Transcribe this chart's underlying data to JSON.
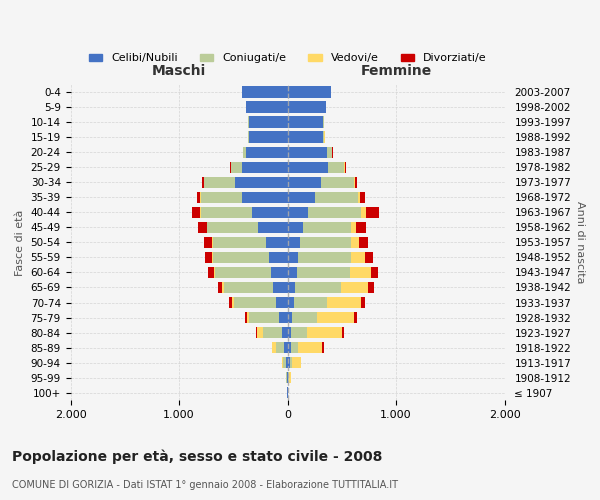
{
  "age_groups": [
    "100+",
    "95-99",
    "90-94",
    "85-89",
    "80-84",
    "75-79",
    "70-74",
    "65-69",
    "60-64",
    "55-59",
    "50-54",
    "45-49",
    "40-44",
    "35-39",
    "30-34",
    "25-29",
    "20-24",
    "15-19",
    "10-14",
    "5-9",
    "0-4"
  ],
  "birth_years": [
    "≤ 1907",
    "1908-1912",
    "1913-1917",
    "1918-1922",
    "1923-1927",
    "1928-1932",
    "1933-1937",
    "1938-1942",
    "1943-1947",
    "1948-1952",
    "1953-1957",
    "1958-1962",
    "1963-1967",
    "1968-1972",
    "1973-1977",
    "1978-1982",
    "1983-1987",
    "1988-1992",
    "1993-1997",
    "1998-2002",
    "2003-2007"
  ],
  "males": {
    "celibe": [
      2,
      5,
      15,
      30,
      50,
      75,
      110,
      130,
      155,
      175,
      200,
      270,
      330,
      420,
      480,
      420,
      380,
      360,
      360,
      385,
      420
    ],
    "coniugato": [
      2,
      8,
      30,
      80,
      180,
      280,
      380,
      460,
      510,
      510,
      490,
      470,
      470,
      380,
      290,
      100,
      30,
      5,
      2,
      1,
      1
    ],
    "vedovo": [
      1,
      3,
      8,
      30,
      55,
      20,
      20,
      15,
      10,
      8,
      6,
      5,
      4,
      3,
      2,
      1,
      1,
      0,
      0,
      0,
      0
    ],
    "divorziato": [
      0,
      0,
      1,
      5,
      5,
      20,
      30,
      40,
      60,
      70,
      70,
      80,
      80,
      35,
      15,
      5,
      2,
      1,
      0,
      0,
      0
    ]
  },
  "females": {
    "nubile": [
      2,
      8,
      20,
      30,
      30,
      40,
      55,
      65,
      85,
      95,
      110,
      140,
      190,
      250,
      310,
      370,
      360,
      330,
      330,
      350,
      400
    ],
    "coniugata": [
      2,
      5,
      20,
      70,
      150,
      230,
      310,
      430,
      490,
      490,
      470,
      440,
      490,
      400,
      300,
      150,
      50,
      10,
      3,
      1,
      1
    ],
    "vedova": [
      3,
      20,
      80,
      220,
      320,
      340,
      310,
      250,
      190,
      130,
      80,
      55,
      40,
      20,
      10,
      5,
      2,
      1,
      0,
      0,
      0
    ],
    "divorziata": [
      0,
      0,
      2,
      20,
      20,
      30,
      40,
      55,
      65,
      70,
      80,
      85,
      120,
      45,
      20,
      10,
      3,
      1,
      0,
      0,
      0
    ]
  },
  "colors": {
    "celibe": "#4472C4",
    "coniugato": "#BBCC99",
    "vedovo": "#FFD966",
    "divorziato": "#CC0000"
  },
  "xlim": 2000,
  "title": "Popolazione per età, sesso e stato civile - 2008",
  "subtitle": "COMUNE DI GORIZIA - Dati ISTAT 1° gennaio 2008 - Elaborazione TUTTITALIA.IT",
  "xlabel_left": "Maschi",
  "xlabel_right": "Femmine",
  "ylabel_left": "Fasce di età",
  "ylabel_right": "Anni di nascita",
  "background_color": "#f5f5f5",
  "grid_color": "#cccccc",
  "legend_labels": [
    "Celibi/Nubili",
    "Coniugati/e",
    "Vedovi/e",
    "Divorziati/e"
  ]
}
